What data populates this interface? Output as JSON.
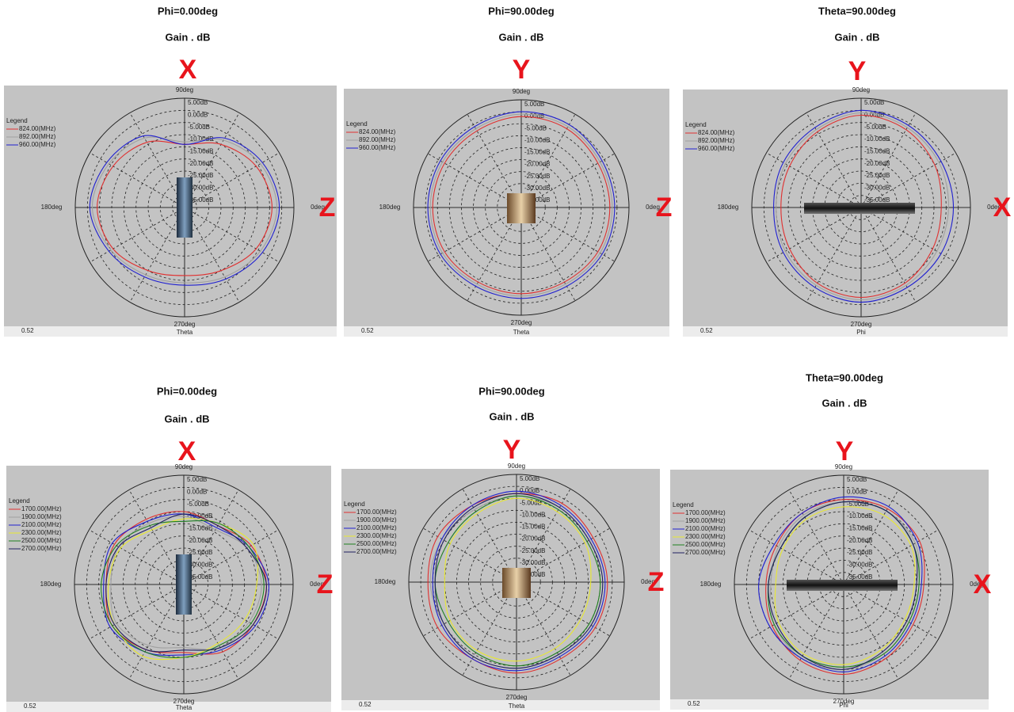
{
  "chart_data": [
    {
      "type": "polar",
      "title": "Phi=0.00deg",
      "subtitle": "Gain . dB",
      "top_label": "X",
      "right_label": "Z",
      "footer_value": "0.52",
      "footer_label": "Theta",
      "legend_title": "Legend",
      "rlim": [
        -40,
        5
      ],
      "rticks": [
        {
          "value": 5,
          "label": "5.00dB"
        },
        {
          "value": 0,
          "label": "0.00dB"
        },
        {
          "value": -5,
          "label": "-5.00dB"
        },
        {
          "value": -10,
          "label": "-10.00dB"
        },
        {
          "value": -15,
          "label": "-15.00dB"
        },
        {
          "value": -20,
          "label": "-20.00dB"
        },
        {
          "value": -25,
          "label": "-25.00dB"
        },
        {
          "value": -30,
          "label": "-30.00dB"
        },
        {
          "value": -35,
          "label": "-35.00dB"
        }
      ],
      "angle_ticks": [
        {
          "value": 0,
          "label": "0deg"
        },
        {
          "value": 90,
          "label": "90deg"
        },
        {
          "value": 180,
          "label": "180deg"
        },
        {
          "value": 270,
          "label": "270deg"
        }
      ],
      "theta": [
        0,
        30,
        60,
        90,
        120,
        150,
        180,
        210,
        240,
        270,
        300,
        330
      ],
      "series": [
        {
          "name": "824.00(MHz)",
          "color": "#e03030",
          "values": [
            -4,
            -6,
            -10,
            -14,
            -9,
            -6,
            -4,
            -6,
            -10,
            -12,
            -10,
            -6
          ]
        },
        {
          "name": "892.00(MHz)",
          "color": "#a0a0a0",
          "values": [
            -2,
            -4,
            -8,
            -13,
            -7,
            -4,
            -2,
            -5,
            -8,
            -9,
            -7,
            -4
          ]
        },
        {
          "name": "960.00(MHz)",
          "color": "#2020d0",
          "values": [
            -1,
            -3,
            -7,
            -14,
            -6,
            -3,
            -1,
            -4,
            -7,
            -8,
            -6,
            -3
          ]
        }
      ]
    },
    {
      "type": "polar",
      "title": "Phi=90.00deg",
      "subtitle": "Gain . dB",
      "top_label": "Y",
      "right_label": "Z",
      "footer_value": "0.52",
      "footer_label": "Theta",
      "legend_title": "Legend",
      "rlim": [
        -40,
        5
      ],
      "rticks": [
        {
          "value": 5,
          "label": "5.00dB"
        },
        {
          "value": 0,
          "label": "0.00dB"
        },
        {
          "value": -5,
          "label": "-5.00dB"
        },
        {
          "value": -10,
          "label": "-10.00dB"
        },
        {
          "value": -15,
          "label": "-15.00dB"
        },
        {
          "value": -20,
          "label": "-20.00dB"
        },
        {
          "value": -25,
          "label": "-25.00dB"
        },
        {
          "value": -30,
          "label": "-30.00dB"
        },
        {
          "value": -35,
          "label": "-35.00dB"
        }
      ],
      "angle_ticks": [
        {
          "value": 0,
          "label": "0deg"
        },
        {
          "value": 90,
          "label": "90deg"
        },
        {
          "value": 180,
          "label": "180deg"
        },
        {
          "value": 270,
          "label": "270deg"
        }
      ],
      "theta": [
        0,
        30,
        60,
        90,
        120,
        150,
        180,
        210,
        240,
        270,
        300,
        330
      ],
      "series": [
        {
          "name": "824.00(MHz)",
          "color": "#e03030",
          "values": [
            -3,
            -3,
            -2,
            -2,
            -3,
            -3,
            -3,
            -3,
            -4,
            -4,
            -4,
            -3
          ]
        },
        {
          "name": "892.00(MHz)",
          "color": "#a0a0a0",
          "values": [
            -2,
            -2,
            -1,
            -1,
            -2,
            -2,
            -2,
            -2,
            -3,
            -3,
            -3,
            -2
          ]
        },
        {
          "name": "960.00(MHz)",
          "color": "#2020d0",
          "values": [
            -1,
            -1,
            0,
            0,
            -1,
            -1,
            -1,
            -1,
            -2,
            -2,
            -2,
            -1
          ]
        }
      ]
    },
    {
      "type": "polar",
      "title": "Theta=90.00deg",
      "subtitle": "Gain . dB",
      "top_label": "Y",
      "right_label": "X",
      "footer_value": "0.52",
      "footer_label": "Phi",
      "legend_title": "Legend",
      "rlim": [
        -40,
        5
      ],
      "rticks": [
        {
          "value": 5,
          "label": "5.00dB"
        },
        {
          "value": 0,
          "label": "0.00dB"
        },
        {
          "value": -5,
          "label": "-5.00dB"
        },
        {
          "value": -10,
          "label": "-10.00dB"
        },
        {
          "value": -15,
          "label": "-15.00dB"
        },
        {
          "value": -20,
          "label": "-20.00dB"
        },
        {
          "value": -25,
          "label": "-25.00dB"
        },
        {
          "value": -30,
          "label": "-30.00dB"
        },
        {
          "value": -35,
          "label": "-35.00dB"
        }
      ],
      "angle_ticks": [
        {
          "value": 0,
          "label": "0deg"
        },
        {
          "value": 90,
          "label": "90deg"
        },
        {
          "value": 180,
          "label": "180deg"
        },
        {
          "value": 270,
          "label": "270deg"
        }
      ],
      "theta": [
        0,
        30,
        60,
        90,
        120,
        150,
        180,
        210,
        240,
        270,
        300,
        330
      ],
      "series": [
        {
          "name": "824.00(MHz)",
          "color": "#e03030",
          "values": [
            -7,
            -5,
            -3,
            -2,
            -4,
            -6,
            -7,
            -6,
            -4,
            -3,
            -4,
            -6
          ]
        },
        {
          "name": "892.00(MHz)",
          "color": "#a0a0a0",
          "values": [
            -4,
            -3,
            -2,
            -1,
            -3,
            -4,
            -5,
            -4,
            -3,
            -2,
            -3,
            -4
          ]
        },
        {
          "name": "960.00(MHz)",
          "color": "#2020d0",
          "values": [
            -2,
            -2,
            -1,
            0,
            -2,
            -3,
            -4,
            -3,
            -2,
            -1,
            -2,
            -2
          ]
        }
      ]
    },
    {
      "type": "polar",
      "title": "Phi=0.00deg",
      "subtitle": "Gain . dB",
      "top_label": "X",
      "right_label": "Z",
      "footer_value": "0.52",
      "footer_label": "Theta",
      "legend_title": "Legend",
      "rlim": [
        -40,
        5
      ],
      "rticks": [
        {
          "value": 5,
          "label": "5.00dB"
        },
        {
          "value": 0,
          "label": "0.00dB"
        },
        {
          "value": -5,
          "label": "-5.00dB"
        },
        {
          "value": -10,
          "label": "-10.00dB"
        },
        {
          "value": -15,
          "label": "-15.00dB"
        },
        {
          "value": -20,
          "label": "-20.00dB"
        },
        {
          "value": -25,
          "label": "-25.00dB"
        },
        {
          "value": -30,
          "label": "-30.00dB"
        },
        {
          "value": -35,
          "label": "-35.00dB"
        }
      ],
      "angle_ticks": [
        {
          "value": 0,
          "label": "0deg"
        },
        {
          "value": 90,
          "label": "90deg"
        },
        {
          "value": 180,
          "label": "180deg"
        },
        {
          "value": 270,
          "label": "270deg"
        }
      ],
      "theta": [
        0,
        30,
        60,
        90,
        120,
        150,
        180,
        210,
        240,
        270,
        300,
        330
      ],
      "series": [
        {
          "name": "1700.00(MHz)",
          "color": "#e03030",
          "values": [
            -6,
            -8,
            -12,
            -10,
            -9,
            -7,
            -8,
            -6,
            -9,
            -12,
            -8,
            -7
          ]
        },
        {
          "name": "1900.00(MHz)",
          "color": "#a0a0a0",
          "values": [
            -8,
            -10,
            -14,
            -12,
            -11,
            -9,
            -10,
            -8,
            -11,
            -14,
            -10,
            -9
          ]
        },
        {
          "name": "2100.00(MHz)",
          "color": "#2020d0",
          "values": [
            -5,
            -9,
            -13,
            -11,
            -10,
            -6,
            -7,
            -5,
            -8,
            -11,
            -9,
            -6
          ]
        },
        {
          "name": "2300.00(MHz)",
          "color": "#e8e830",
          "values": [
            -10,
            -7,
            -11,
            -13,
            -14,
            -10,
            -9,
            -7,
            -6,
            -10,
            -12,
            -11
          ]
        },
        {
          "name": "2500.00(MHz)",
          "color": "#208020",
          "values": [
            -7,
            -9,
            -11,
            -14,
            -12,
            -8,
            -6,
            -6,
            -8,
            -10,
            -11,
            -8
          ]
        },
        {
          "name": "2700.00(MHz)",
          "color": "#202060",
          "values": [
            -6,
            -10,
            -12,
            -11,
            -13,
            -9,
            -8,
            -7,
            -9,
            -13,
            -10,
            -7
          ]
        }
      ]
    },
    {
      "type": "polar",
      "title": "Phi=90.00deg",
      "subtitle": "Gain . dB",
      "top_label": "Y",
      "right_label": "Z",
      "footer_value": "0.52",
      "footer_label": "Theta",
      "legend_title": "Legend",
      "rlim": [
        -40,
        5
      ],
      "rticks": [
        {
          "value": 5,
          "label": "5.00dB"
        },
        {
          "value": 0,
          "label": "0.00dB"
        },
        {
          "value": -5,
          "label": "-5.00dB"
        },
        {
          "value": -10,
          "label": "-10.00dB"
        },
        {
          "value": -15,
          "label": "-15.00dB"
        },
        {
          "value": -20,
          "label": "-20.00dB"
        },
        {
          "value": -25,
          "label": "-25.00dB"
        },
        {
          "value": -30,
          "label": "-30.00dB"
        },
        {
          "value": -35,
          "label": "-35.00dB"
        }
      ],
      "angle_ticks": [
        {
          "value": 0,
          "label": "0deg"
        },
        {
          "value": 90,
          "label": "90deg"
        },
        {
          "value": 180,
          "label": "180deg"
        },
        {
          "value": 270,
          "label": "270deg"
        }
      ],
      "theta": [
        0,
        30,
        60,
        90,
        120,
        150,
        180,
        210,
        240,
        270,
        300,
        330
      ],
      "series": [
        {
          "name": "1700.00(MHz)",
          "color": "#e03030",
          "values": [
            -2,
            -3,
            -2,
            -3,
            -3,
            -2,
            -3,
            -2,
            -3,
            -2,
            -3,
            -2
          ]
        },
        {
          "name": "1900.00(MHz)",
          "color": "#a0a0a0",
          "values": [
            -4,
            -5,
            -4,
            -4,
            -5,
            -4,
            -4,
            -5,
            -4,
            -4,
            -5,
            -4
          ]
        },
        {
          "name": "2100.00(MHz)",
          "color": "#2020d0",
          "values": [
            -3,
            -4,
            -3,
            -2,
            -3,
            -4,
            -5,
            -4,
            -3,
            -3,
            -4,
            -3
          ]
        },
        {
          "name": "2300.00(MHz)",
          "color": "#e8e830",
          "values": [
            -9,
            -7,
            -6,
            -5,
            -7,
            -8,
            -10,
            -8,
            -7,
            -7,
            -8,
            -9
          ]
        },
        {
          "name": "2500.00(MHz)",
          "color": "#208020",
          "values": [
            -5,
            -6,
            -5,
            -4,
            -6,
            -7,
            -6,
            -7,
            -6,
            -5,
            -6,
            -5
          ]
        },
        {
          "name": "2700.00(MHz)",
          "color": "#202060",
          "values": [
            -4,
            -5,
            -4,
            -3,
            -4,
            -5,
            -6,
            -5,
            -4,
            -4,
            -5,
            -4
          ]
        }
      ]
    },
    {
      "type": "polar",
      "title": "Theta=90.00deg",
      "subtitle": "Gain . dB",
      "top_label": "Y",
      "right_label": "X",
      "footer_value": "0.52",
      "footer_label": "Phi",
      "legend_title": "Legend",
      "rlim": [
        -40,
        5
      ],
      "rticks": [
        {
          "value": 5,
          "label": "5.00dB"
        },
        {
          "value": 0,
          "label": "0.00dB"
        },
        {
          "value": -5,
          "label": "-5.00dB"
        },
        {
          "value": -10,
          "label": "-10.00dB"
        },
        {
          "value": -15,
          "label": "-15.00dB"
        },
        {
          "value": -20,
          "label": "-20.00dB"
        },
        {
          "value": -25,
          "label": "-25.00dB"
        },
        {
          "value": -30,
          "label": "-30.00dB"
        },
        {
          "value": -35,
          "label": "-35.00dB"
        }
      ],
      "angle_ticks": [
        {
          "value": 0,
          "label": "0deg"
        },
        {
          "value": 90,
          "label": "90deg"
        },
        {
          "value": 180,
          "label": "180deg"
        },
        {
          "value": 270,
          "label": "270deg"
        }
      ],
      "theta": [
        0,
        30,
        60,
        90,
        120,
        150,
        180,
        210,
        240,
        270,
        300,
        330
      ],
      "series": [
        {
          "name": "1700.00(MHz)",
          "color": "#e03030",
          "values": [
            -7,
            -4,
            -4,
            -5,
            -6,
            -8,
            -8,
            -6,
            -4,
            -3,
            -5,
            -7
          ]
        },
        {
          "name": "1900.00(MHz)",
          "color": "#a0a0a0",
          "values": [
            -9,
            -6,
            -5,
            -6,
            -7,
            -9,
            -10,
            -7,
            -5,
            -5,
            -7,
            -9
          ]
        },
        {
          "name": "2100.00(MHz)",
          "color": "#2020d0",
          "values": [
            -8,
            -5,
            -3,
            -4,
            -6,
            -7,
            -5,
            -5,
            -5,
            -4,
            -6,
            -8
          ]
        },
        {
          "name": "2300.00(MHz)",
          "color": "#e8e830",
          "values": [
            -11,
            -8,
            -7,
            -8,
            -9,
            -11,
            -12,
            -9,
            -7,
            -7,
            -9,
            -11
          ]
        },
        {
          "name": "2500.00(MHz)",
          "color": "#208020",
          "values": [
            -9,
            -7,
            -5,
            -6,
            -8,
            -10,
            -9,
            -7,
            -6,
            -6,
            -7,
            -9
          ]
        },
        {
          "name": "2700.00(MHz)",
          "color": "#202060",
          "values": [
            -10,
            -7,
            -5,
            -6,
            -8,
            -10,
            -9,
            -8,
            -6,
            -5,
            -8,
            -10
          ]
        }
      ]
    }
  ]
}
